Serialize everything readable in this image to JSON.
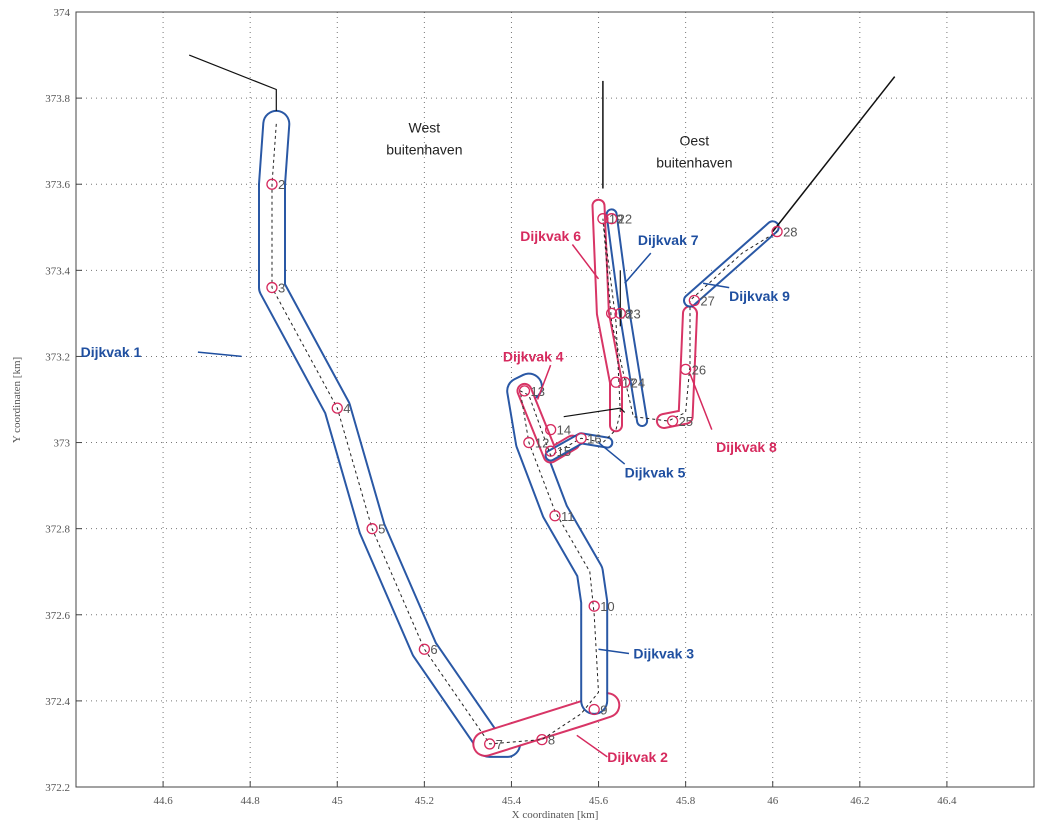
{
  "chart_data": {
    "type": "line",
    "xlabel": "X coordinaten [km]",
    "ylabel": "Y coordinaten [km]",
    "xlim": [
      44.4,
      46.6
    ],
    "ylim": [
      372.2,
      374.0
    ],
    "xticks": [
      44.6,
      44.8,
      45.0,
      45.2,
      45.4,
      45.6,
      45.8,
      46.0,
      46.2,
      46.4
    ],
    "xtick_labels": [
      "44.6",
      "44.8",
      "45",
      "45.2",
      "45.4",
      "45.6",
      "45.8",
      "46",
      "46.2",
      "46.4"
    ],
    "yticks": [
      372.2,
      372.4,
      372.6,
      372.8,
      373.0,
      373.2,
      373.4,
      373.6,
      373.8,
      374.0
    ],
    "ytick_labels": [
      "372.2",
      "372.4",
      "372.6",
      "372.8",
      "373",
      "373.2",
      "373.4",
      "373.6",
      "373.8",
      "374"
    ],
    "grid": true,
    "region_labels": [
      {
        "lines": [
          "West",
          "buitenhaven"
        ],
        "x": 45.2,
        "y": 373.72
      },
      {
        "lines": [
          "Oest",
          "buitenhaven"
        ],
        "x": 45.82,
        "y": 373.69
      }
    ],
    "coastline": [
      [
        [
          44.66,
          373.9
        ],
        [
          44.86,
          373.82
        ],
        [
          44.86,
          373.77
        ]
      ],
      [
        [
          45.52,
          373.06
        ],
        [
          45.65,
          373.08
        ],
        [
          45.66,
          373.07
        ]
      ],
      [
        [
          45.65,
          373.27
        ],
        [
          45.65,
          373.4
        ]
      ]
    ],
    "thin_lines": [
      [
        [
          45.61,
          373.59
        ],
        [
          45.61,
          373.84
        ]
      ],
      [
        [
          46.0,
          373.49
        ],
        [
          46.28,
          373.85
        ]
      ]
    ],
    "centerline": [
      [
        44.86,
        373.74
      ],
      [
        44.85,
        373.6
      ],
      [
        44.85,
        373.36
      ],
      [
        45.0,
        373.08
      ],
      [
        45.08,
        372.8
      ],
      [
        45.2,
        372.52
      ],
      [
        45.35,
        372.3
      ],
      [
        45.47,
        372.31
      ],
      [
        45.56,
        372.37
      ],
      [
        45.6,
        372.42
      ],
      [
        45.59,
        372.6
      ],
      [
        45.58,
        372.7
      ],
      [
        45.5,
        372.84
      ],
      [
        45.44,
        373.0
      ],
      [
        45.42,
        373.12
      ],
      [
        45.44,
        373.11
      ],
      [
        45.49,
        372.97
      ],
      [
        45.56,
        373.01
      ],
      [
        45.61,
        373.0
      ],
      [
        45.64,
        373.03
      ],
      [
        45.65,
        373.07
      ],
      [
        45.64,
        373.28
      ],
      [
        45.61,
        373.52
      ],
      [
        45.63,
        373.28
      ],
      [
        45.68,
        373.06
      ],
      [
        45.76,
        373.05
      ],
      [
        45.8,
        373.07
      ],
      [
        45.81,
        373.18
      ],
      [
        45.81,
        373.33
      ],
      [
        45.93,
        373.44
      ],
      [
        46.01,
        373.49
      ]
    ],
    "points": [
      {
        "label": "2",
        "x": 44.85,
        "y": 373.6
      },
      {
        "label": "3",
        "x": 44.85,
        "y": 373.36
      },
      {
        "label": "4",
        "x": 45.0,
        "y": 373.08
      },
      {
        "label": "5",
        "x": 45.08,
        "y": 372.8
      },
      {
        "label": "6",
        "x": 45.2,
        "y": 372.52
      },
      {
        "label": "7",
        "x": 45.35,
        "y": 372.3
      },
      {
        "label": "8",
        "x": 45.47,
        "y": 372.31
      },
      {
        "label": "9",
        "x": 45.59,
        "y": 372.38
      },
      {
        "label": "10",
        "x": 45.59,
        "y": 372.62
      },
      {
        "label": "11",
        "x": 45.5,
        "y": 372.83
      },
      {
        "label": "12",
        "x": 45.44,
        "y": 373.0
      },
      {
        "label": "13",
        "x": 45.43,
        "y": 373.12
      },
      {
        "label": "14",
        "x": 45.49,
        "y": 373.03
      },
      {
        "label": "15",
        "x": 45.49,
        "y": 372.98
      },
      {
        "label": "16",
        "x": 45.56,
        "y": 373.01
      },
      {
        "label": "17",
        "x": 45.64,
        "y": 373.14
      },
      {
        "label": "18",
        "x": 45.63,
        "y": 373.3
      },
      {
        "label": "19",
        "x": 45.61,
        "y": 373.52
      },
      {
        "label": "22",
        "x": 45.63,
        "y": 373.52
      },
      {
        "label": "23",
        "x": 45.65,
        "y": 373.3
      },
      {
        "label": "24",
        "x": 45.66,
        "y": 373.14
      },
      {
        "label": "25",
        "x": 45.77,
        "y": 373.05
      },
      {
        "label": "26",
        "x": 45.8,
        "y": 373.17
      },
      {
        "label": "27",
        "x": 45.82,
        "y": 373.33
      },
      {
        "label": "28",
        "x": 46.01,
        "y": 373.49
      }
    ],
    "dijkvakken": [
      {
        "name": "Dijkvak 1",
        "color": "#1f4fa0",
        "path": [
          [
            44.86,
            373.74
          ],
          [
            44.85,
            373.6
          ],
          [
            44.85,
            373.36
          ],
          [
            45.0,
            373.08
          ],
          [
            45.08,
            372.8
          ],
          [
            45.2,
            372.52
          ],
          [
            45.35,
            372.3
          ],
          [
            45.39,
            372.3
          ]
        ],
        "width": 28,
        "label_x": 44.55,
        "label_y": 373.21,
        "anchor": "end",
        "leader": [
          [
            44.68,
            373.21
          ],
          [
            44.78,
            373.2
          ]
        ]
      },
      {
        "name": "Dijkvak 2",
        "color": "#d62a5e",
        "path": [
          [
            45.34,
            372.3
          ],
          [
            45.56,
            372.37
          ],
          [
            45.62,
            372.39
          ]
        ],
        "width": 26,
        "label_x": 45.62,
        "label_y": 372.27,
        "anchor": "start",
        "leader": [
          [
            45.55,
            372.32
          ],
          [
            45.62,
            372.27
          ]
        ]
      },
      {
        "name": "Dijkvak 3",
        "color": "#1f4fa0",
        "path": [
          [
            45.59,
            372.4
          ],
          [
            45.59,
            372.63
          ],
          [
            45.58,
            372.7
          ],
          [
            45.5,
            372.84
          ],
          [
            45.44,
            373.0
          ],
          [
            45.42,
            373.12
          ],
          [
            45.44,
            373.13
          ]
        ],
        "width": 28,
        "label_x": 45.68,
        "label_y": 372.51,
        "anchor": "start",
        "leader": [
          [
            45.6,
            372.52
          ],
          [
            45.67,
            372.51
          ]
        ]
      },
      {
        "name": "Dijkvak 4",
        "color": "#d62a5e",
        "path": [
          [
            45.43,
            373.12
          ],
          [
            45.49,
            372.97
          ],
          [
            45.54,
            373.0
          ]
        ],
        "width": 16,
        "label_x": 45.45,
        "label_y": 373.2,
        "anchor": "middle",
        "leader": [
          [
            45.49,
            373.18
          ],
          [
            45.46,
            373.1
          ]
        ]
      },
      {
        "name": "Dijkvak 5",
        "color": "#1f4fa0",
        "path": [
          [
            45.49,
            372.97
          ],
          [
            45.56,
            373.01
          ],
          [
            45.62,
            373.0
          ]
        ],
        "width": 12,
        "label_x": 45.66,
        "label_y": 372.93,
        "anchor": "start",
        "leader": [
          [
            45.6,
            373.0
          ],
          [
            45.66,
            372.95
          ]
        ]
      },
      {
        "name": "Dijkvak 6",
        "color": "#d62a5e",
        "path": [
          [
            45.6,
            373.55
          ],
          [
            45.61,
            373.3
          ],
          [
            45.64,
            373.14
          ],
          [
            45.64,
            373.04
          ]
        ],
        "width": 14,
        "label_x": 45.49,
        "label_y": 373.48,
        "anchor": "middle",
        "leader": [
          [
            45.54,
            373.46
          ],
          [
            45.6,
            373.38
          ]
        ]
      },
      {
        "name": "Dijkvak 7",
        "color": "#1f4fa0",
        "path": [
          [
            45.63,
            373.53
          ],
          [
            45.66,
            373.3
          ],
          [
            45.7,
            373.05
          ]
        ],
        "width": 12,
        "label_x": 45.76,
        "label_y": 373.47,
        "anchor": "middle",
        "leader": [
          [
            45.72,
            373.44
          ],
          [
            45.66,
            373.37
          ]
        ]
      },
      {
        "name": "Dijkvak 8",
        "color": "#d62a5e",
        "path": [
          [
            45.75,
            373.05
          ],
          [
            45.8,
            373.06
          ],
          [
            45.81,
            373.3
          ]
        ],
        "width": 16,
        "label_x": 45.87,
        "label_y": 372.99,
        "anchor": "start",
        "leader": [
          [
            45.81,
            373.16
          ],
          [
            45.86,
            373.03
          ]
        ]
      },
      {
        "name": "Dijkvak 9",
        "color": "#1f4fa0",
        "path": [
          [
            45.81,
            373.33
          ],
          [
            46.0,
            373.5
          ]
        ],
        "width": 14,
        "label_x": 45.9,
        "label_y": 373.34,
        "anchor": "start",
        "leader": [
          [
            45.84,
            373.37
          ],
          [
            45.9,
            373.36
          ]
        ]
      }
    ]
  }
}
